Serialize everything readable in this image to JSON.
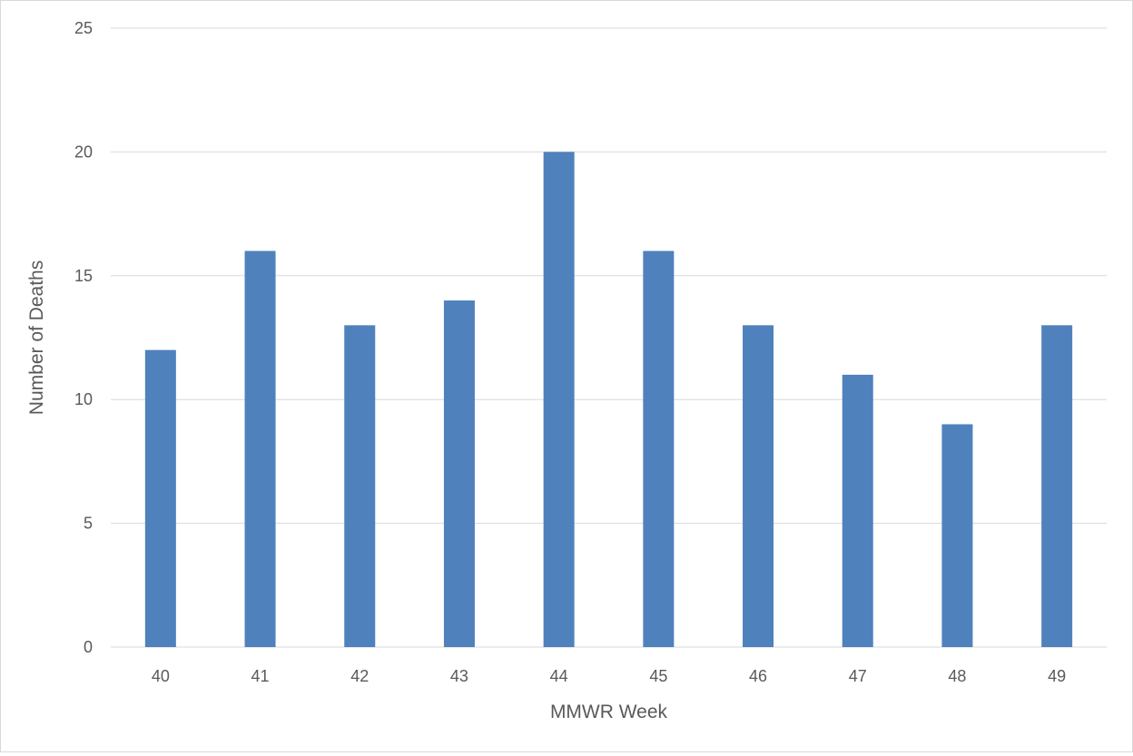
{
  "chart_data": {
    "type": "bar",
    "categories": [
      "40",
      "41",
      "42",
      "43",
      "44",
      "45",
      "46",
      "47",
      "48",
      "49"
    ],
    "values": [
      12,
      16,
      13,
      14,
      20,
      16,
      13,
      11,
      9,
      13
    ],
    "title": "",
    "xlabel": "MMWR Week",
    "ylabel": "Number of Deaths",
    "ylim": [
      0,
      25
    ],
    "yticks": [
      0,
      5,
      10,
      15,
      20,
      25
    ],
    "grid": true,
    "legend": "none",
    "bar_color": "#4f81bd"
  }
}
